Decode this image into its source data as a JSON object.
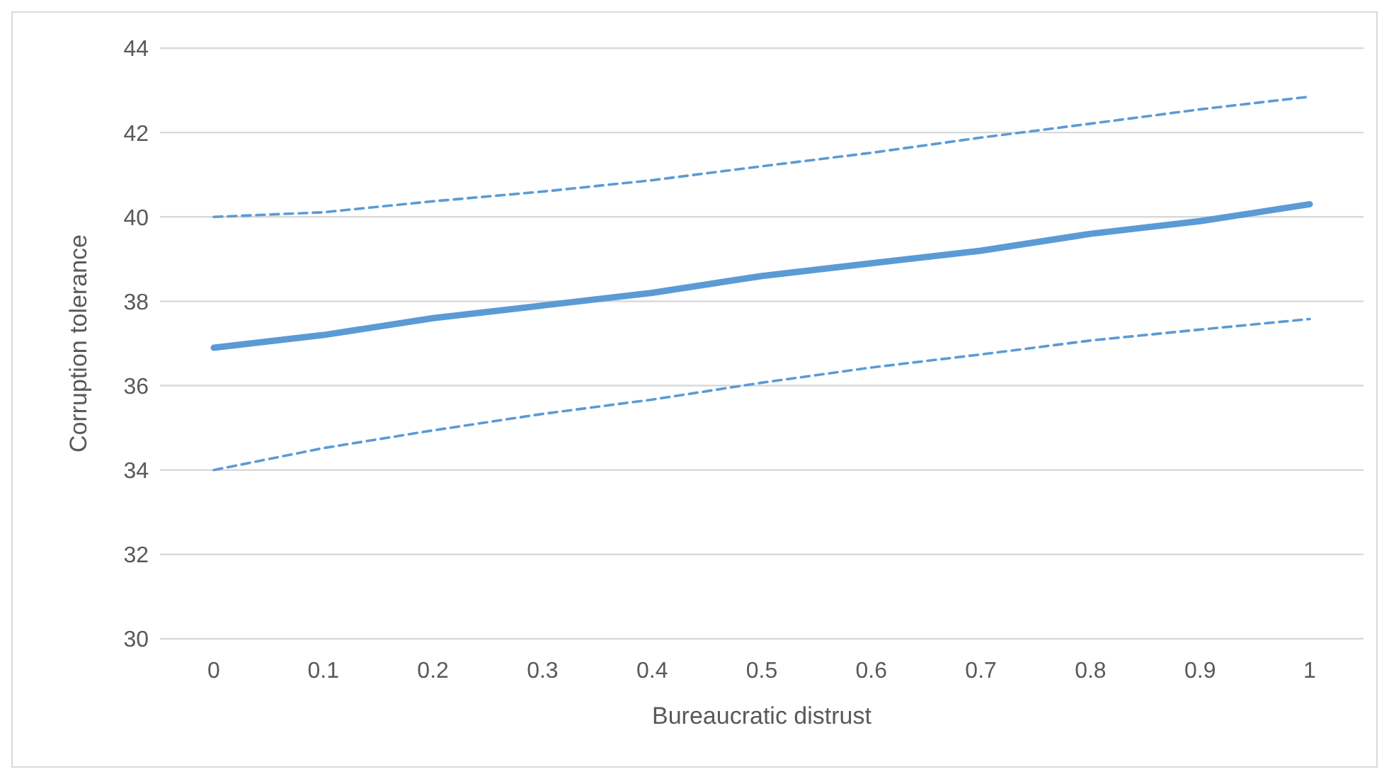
{
  "chart_data": {
    "type": "line",
    "xlabel": "Bureaucratic distrust",
    "ylabel": "Corruption tolerance",
    "categories": [
      "0",
      "0.1",
      "0.2",
      "0.3",
      "0.4",
      "0.5",
      "0.6",
      "0.7",
      "0.8",
      "0.9",
      "1"
    ],
    "series": [
      {
        "color": "#5b9bd5",
        "line_style": "dashed",
        "values": [
          40.0,
          40.11,
          40.37,
          40.6,
          40.87,
          41.2,
          41.52,
          41.88,
          42.21,
          42.55,
          42.85
        ]
      },
      {
        "color": "#5b9bd5",
        "line_style": "solid",
        "values": [
          36.9,
          37.2,
          37.6,
          37.9,
          38.2,
          38.6,
          38.9,
          39.2,
          39.6,
          39.9,
          40.3
        ]
      },
      {
        "color": "#5b9bd5",
        "line_style": "dashed",
        "values": [
          34.0,
          34.52,
          34.94,
          35.33,
          35.67,
          36.07,
          36.43,
          36.74,
          37.07,
          37.33,
          37.58
        ]
      }
    ],
    "ylim": [
      30,
      44
    ],
    "yticks": [
      30,
      32,
      34,
      36,
      38,
      40,
      42,
      44
    ],
    "grid": "y",
    "marker": "none",
    "legend": false
  }
}
